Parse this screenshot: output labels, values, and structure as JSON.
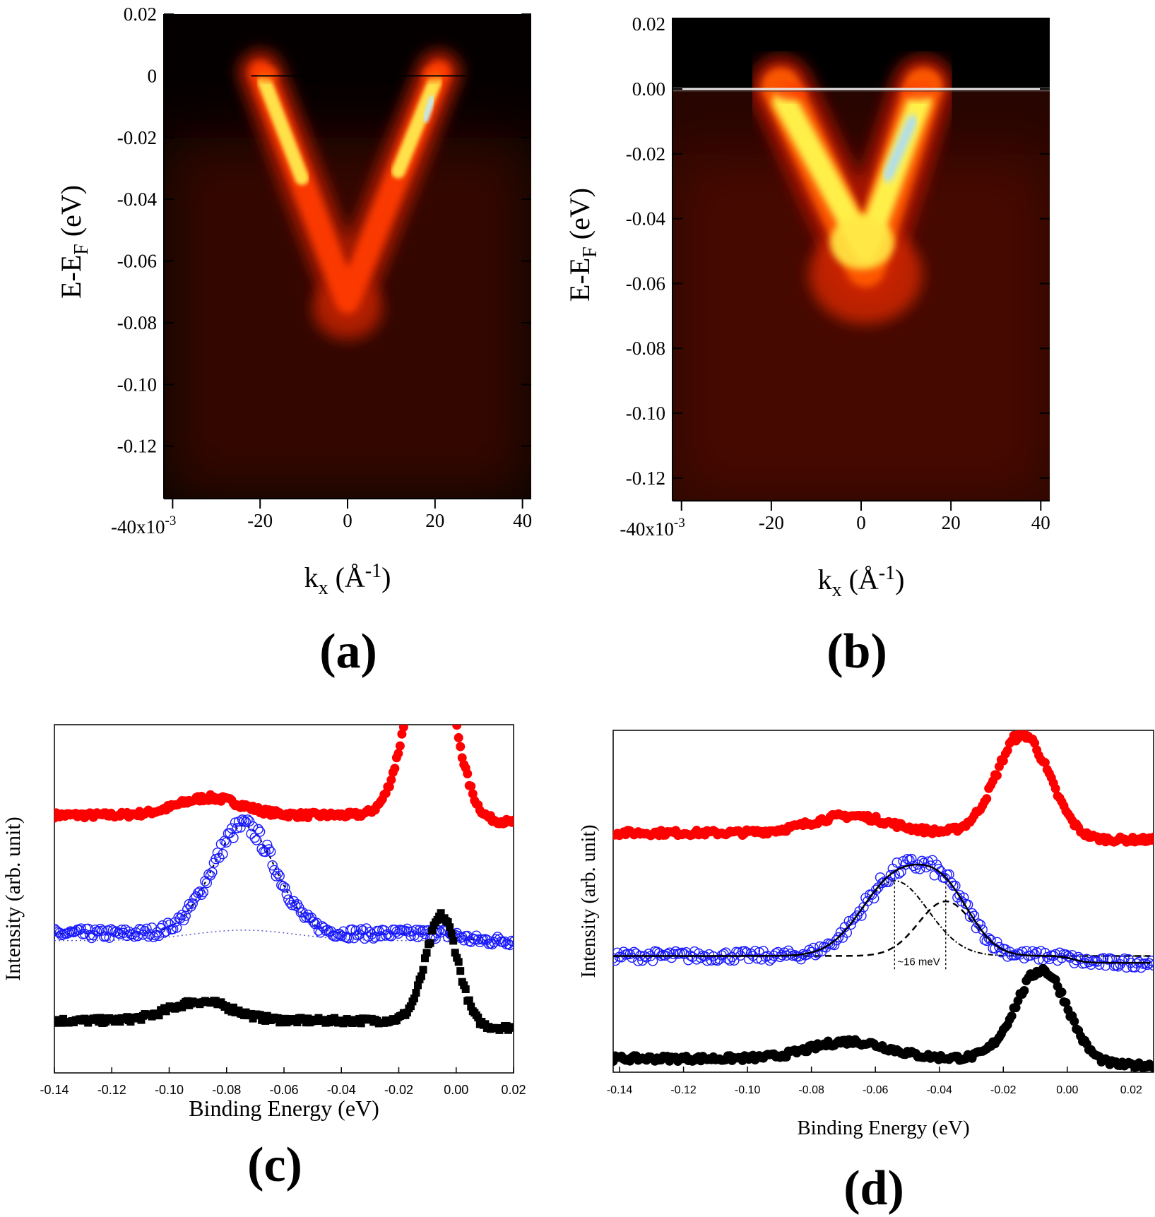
{
  "chart_data": [
    {
      "panel": "(a)",
      "type": "heatmap",
      "xlabel": "k",
      "xlabel_sub": "x",
      "xlabel_unit": " (Å",
      "xlabel_unit_sup": "-1",
      "xlabel_tail": ")",
      "ylabel": "E-E",
      "ylabel_sub": "F",
      "ylabel_tail": " (eV)",
      "xlim": [
        -0.042,
        0.042
      ],
      "ylim": [
        -0.137,
        0.02
      ],
      "xticks": [
        -0.04,
        -0.02,
        0,
        0.02,
        0.04
      ],
      "xtick_labels": [
        "-40x10",
        "-20",
        "0",
        "20",
        "40"
      ],
      "xtick_exp": "-3",
      "yticks": [
        0.02,
        0,
        -0.02,
        -0.04,
        -0.06,
        -0.08,
        -0.1,
        -0.12
      ],
      "ytick_labels": [
        "0.02",
        "0",
        "-0.02",
        "-0.04",
        "-0.06",
        "-0.08",
        "-0.10",
        "-0.12"
      ],
      "fermi_level": 0.0,
      "band": {
        "shape": "V",
        "vertex_k": 0.0,
        "vertex_E": -0.073,
        "kF_left": -0.019,
        "kF_right": 0.02
      }
    },
    {
      "panel": "(b)",
      "type": "heatmap",
      "xlabel": "k",
      "xlabel_sub": "x",
      "xlabel_unit": " (Å",
      "xlabel_unit_sup": "-1",
      "xlabel_tail": ")",
      "ylabel": "E-E",
      "ylabel_sub": "F",
      "ylabel_tail": " (eV)",
      "xlim": [
        -0.042,
        0.042
      ],
      "ylim": [
        -0.127,
        0.022
      ],
      "xticks": [
        -0.04,
        -0.02,
        0,
        0.02,
        0.04
      ],
      "xtick_labels": [
        "-40x10",
        "-20",
        "0",
        "20",
        "40"
      ],
      "xtick_exp": "-3",
      "yticks": [
        0.02,
        0.0,
        -0.02,
        -0.04,
        -0.06,
        -0.08,
        -0.1,
        -0.12
      ],
      "ytick_labels": [
        "0.02",
        "0.00",
        "-0.02",
        "-0.04",
        "-0.06",
        "-0.08",
        "-0.10",
        "-0.12"
      ],
      "fermi_level": 0.0,
      "band": {
        "shape": "V",
        "vertex_k": 0.001,
        "vertex_E": -0.055,
        "kF_left": -0.017,
        "kF_right": 0.013
      }
    },
    {
      "panel": "(c)",
      "type": "scatter",
      "xlabel": "Binding Energy (eV)",
      "ylabel": "Intensity (arb. unit)",
      "xlim": [
        -0.14,
        0.02
      ],
      "xticks": [
        -0.14,
        -0.12,
        -0.1,
        -0.08,
        -0.06,
        -0.04,
        -0.02,
        0.0,
        0.02
      ],
      "xtick_labels": [
        "-0.14",
        "-0.12",
        "-0.10",
        "-0.08",
        "-0.06",
        "-0.04",
        "-0.02",
        "0.00",
        "0.02"
      ],
      "series": [
        {
          "color": "#ff0000",
          "marker": "filled-circle",
          "baseline": 0.74,
          "peaks": [
            {
              "center": -0.009,
              "amp": 0.55,
              "width": 0.0075
            },
            {
              "center": -0.086,
              "amp": 0.05,
              "width": 0.011
            }
          ]
        },
        {
          "color": "#1a1aff",
          "marker": "open-circle",
          "baseline": 0.4,
          "peaks": [
            {
              "center": -0.074,
              "amp": 0.31,
              "width": 0.011
            },
            {
              "center": -0.004,
              "amp": 0.0,
              "width": 0.005
            }
          ]
        },
        {
          "color": "#000000",
          "marker": "filled-square",
          "baseline": 0.15,
          "peaks": [
            {
              "center": -0.005,
              "amp": 0.3,
              "width": 0.0055
            },
            {
              "center": -0.089,
              "amp": 0.055,
              "width": 0.011
            }
          ]
        }
      ]
    },
    {
      "panel": "(d)",
      "type": "scatter",
      "xlabel": "Binding Energy (eV)",
      "ylabel": "Intensity (arb. unit)",
      "xlim": [
        -0.142,
        0.027
      ],
      "xticks": [
        -0.14,
        -0.12,
        -0.1,
        -0.08,
        -0.06,
        -0.04,
        -0.02,
        0.0,
        0.02
      ],
      "xtick_labels": [
        "-0.14",
        "-0.12",
        "-0.10",
        "-0.08",
        "-0.06",
        "-0.04",
        "-0.02",
        "0.00",
        "0.02"
      ],
      "annotation": "~16 meV",
      "split_lines": [
        -0.054,
        -0.038
      ],
      "series": [
        {
          "color": "#ff0000",
          "marker": "filled-circle",
          "baseline": 0.7,
          "peaks": [
            {
              "center": -0.014,
              "amp": 0.29,
              "width": 0.008
            },
            {
              "center": -0.068,
              "amp": 0.05,
              "width": 0.012
            }
          ]
        },
        {
          "color": "#1a1aff",
          "marker": "open-circle",
          "baseline": 0.34,
          "peaks": [
            {
              "center": -0.054,
              "amp": 0.22,
              "width": 0.0105
            },
            {
              "center": -0.038,
              "amp": 0.16,
              "width": 0.0085
            }
          ]
        },
        {
          "color": "#000000",
          "marker": "filled-circle",
          "baseline": 0.04,
          "peaks": [
            {
              "center": -0.008,
              "amp": 0.26,
              "width": 0.008
            },
            {
              "center": -0.068,
              "amp": 0.05,
              "width": 0.012
            }
          ]
        }
      ]
    }
  ],
  "panel_labels": [
    "(a)",
    "(b)",
    "(c)",
    "(d)"
  ]
}
